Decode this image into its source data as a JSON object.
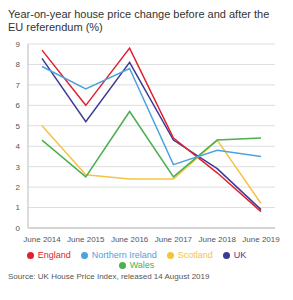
{
  "chart_data": {
    "type": "line",
    "title": "Year-on-year house price change before and after the EU referendum (%)",
    "annotations": [
      "Source: UK House Price Index, released 14 August 2019"
    ],
    "categories": [
      "June 2014",
      "June 2015",
      "June 2016",
      "June 2017",
      "June 2018",
      "June 2019"
    ],
    "series": [
      {
        "name": "UK",
        "color": "#3b3b96",
        "values": [
          8.3,
          5.2,
          8.1,
          4.3,
          2.9,
          0.9
        ]
      },
      {
        "name": "England",
        "color": "#e0202f",
        "values": [
          8.7,
          6.0,
          8.8,
          4.4,
          2.7,
          0.8
        ]
      },
      {
        "name": "Scotland",
        "color": "#f5c342",
        "values": [
          5.0,
          2.6,
          2.4,
          2.4,
          4.3,
          1.2
        ]
      },
      {
        "name": "Wales",
        "color": "#4caf50",
        "values": [
          4.3,
          2.5,
          5.7,
          2.5,
          4.3,
          4.4
        ]
      },
      {
        "name": "Northern Ireland",
        "color": "#4aa3df",
        "values": [
          7.9,
          6.8,
          7.8,
          3.1,
          3.8,
          3.5
        ]
      }
    ],
    "ylim": [
      0,
      9
    ],
    "yticks": [
      0,
      1,
      2,
      3,
      4,
      5,
      6,
      7,
      8,
      9
    ],
    "grid": true,
    "legend": "bottom"
  }
}
